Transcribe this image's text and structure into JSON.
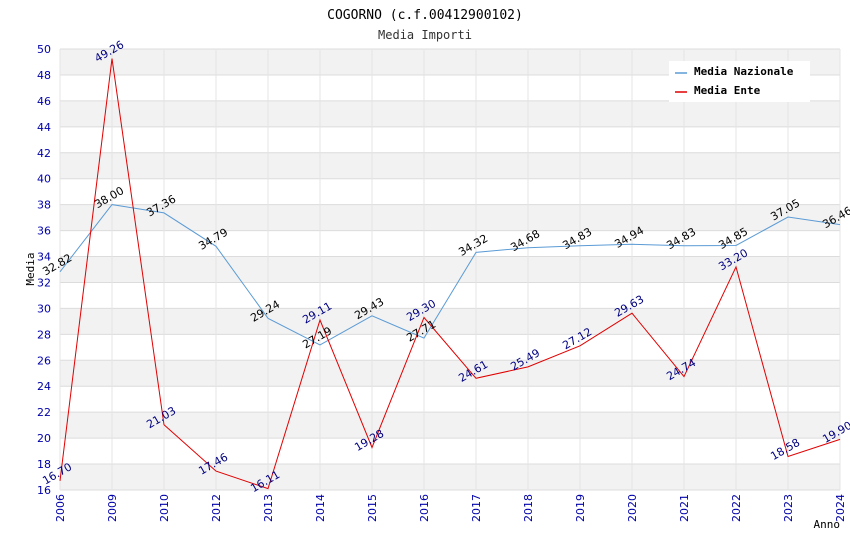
{
  "chart_data": {
    "type": "line",
    "title": "COGORNO (c.f.00412900102)",
    "subtitle": "Media Importi",
    "xlabel": "Anno",
    "ylabel": "Media",
    "ylim": [
      16,
      50
    ],
    "ytick_step": 2,
    "grid": true,
    "legend_position": "top-right",
    "categories": [
      "2006",
      "2009",
      "2010",
      "2012",
      "2013",
      "2014",
      "2015",
      "2016",
      "2017",
      "2018",
      "2019",
      "2020",
      "2021",
      "2022",
      "2023",
      "2024"
    ],
    "series": [
      {
        "name": "Media Nazionale",
        "color": "#5b9bd5",
        "label_color": "#000000",
        "values": [
          32.82,
          38.0,
          37.36,
          34.79,
          29.24,
          27.19,
          29.43,
          27.71,
          34.32,
          34.68,
          34.83,
          34.94,
          34.83,
          34.85,
          37.05,
          36.46
        ],
        "labels": [
          "32.82",
          "38.00",
          "37.36",
          "34.79",
          "29.24",
          "27.19",
          "29.43",
          "27.71",
          "34.32",
          "34.68",
          "34.83",
          "34.94",
          "34.83",
          "34.85",
          "37.05",
          "36.46"
        ]
      },
      {
        "name": "Media Ente",
        "color": "#e00000",
        "label_color": "#000080",
        "values": [
          16.7,
          49.26,
          21.03,
          17.46,
          16.11,
          29.11,
          19.28,
          29.3,
          24.61,
          25.49,
          27.12,
          29.63,
          24.74,
          33.2,
          18.58,
          19.9
        ],
        "labels": [
          "16.70",
          "49.26",
          "21.03",
          "17.46",
          "16.11",
          "29.11",
          "19.28",
          "29.30",
          "24.61",
          "25.49",
          "27.12",
          "29.63",
          "24.74",
          "33.20",
          "18.58",
          "19.90"
        ]
      }
    ]
  }
}
